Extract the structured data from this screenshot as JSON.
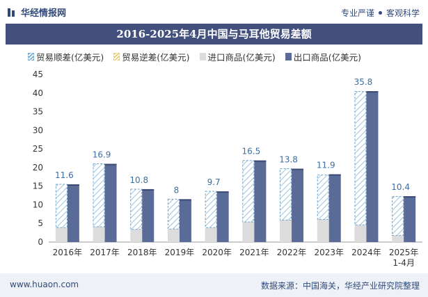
{
  "header": {
    "brand": "华经情报网",
    "tagline_left": "专业严谨",
    "tagline_right": "客观科学"
  },
  "chart_data": {
    "type": "bar",
    "title": "2016-2025年4月中国与马耳他贸易差额",
    "categories": [
      "2016年",
      "2017年",
      "2018年",
      "2019年",
      "2020年",
      "2021年",
      "2022年",
      "2023年",
      "2024年",
      "2025年\n1-4月"
    ],
    "series": [
      {
        "name": "贸易顺差(亿美元)",
        "values": [
          11.6,
          16.9,
          10.8,
          8,
          9.7,
          16.5,
          13.8,
          11.9,
          35.8,
          10.4
        ],
        "color": "#7aaed0",
        "pattern": "hatch"
      },
      {
        "name": "贸易逆差(亿美元)",
        "values": [
          0,
          0,
          0,
          0,
          0,
          0,
          0,
          0,
          0,
          0
        ],
        "color": "#e8cf6a",
        "pattern": "hatch"
      },
      {
        "name": "进口商品(亿美元)",
        "values": [
          3.9,
          4.1,
          3.4,
          3.5,
          3.9,
          5.4,
          5.9,
          6.1,
          4.6,
          1.8
        ],
        "color": "#dcdcdc"
      },
      {
        "name": "出口商品(亿美元)",
        "values": [
          15.5,
          21,
          14.2,
          11.5,
          13.6,
          21.9,
          19.7,
          18.2,
          40.5,
          12.3
        ],
        "color": "#5b6b97"
      }
    ],
    "data_labels": [
      "11.6",
      "16.9",
      "10.8",
      "8",
      "9.7",
      "16.5",
      "13.8",
      "11.9",
      "35.8",
      "10.4"
    ],
    "ylim": [
      0,
      45
    ],
    "yticks": [
      0,
      5,
      10,
      15,
      20,
      25,
      30,
      35,
      40,
      45
    ],
    "legend_position": "top",
    "grid": false,
    "label_color": "#3a6ea5"
  },
  "footer": {
    "website": "www.huaon.com",
    "source": "数据来源：中国海关，华经产业研究院整理"
  }
}
